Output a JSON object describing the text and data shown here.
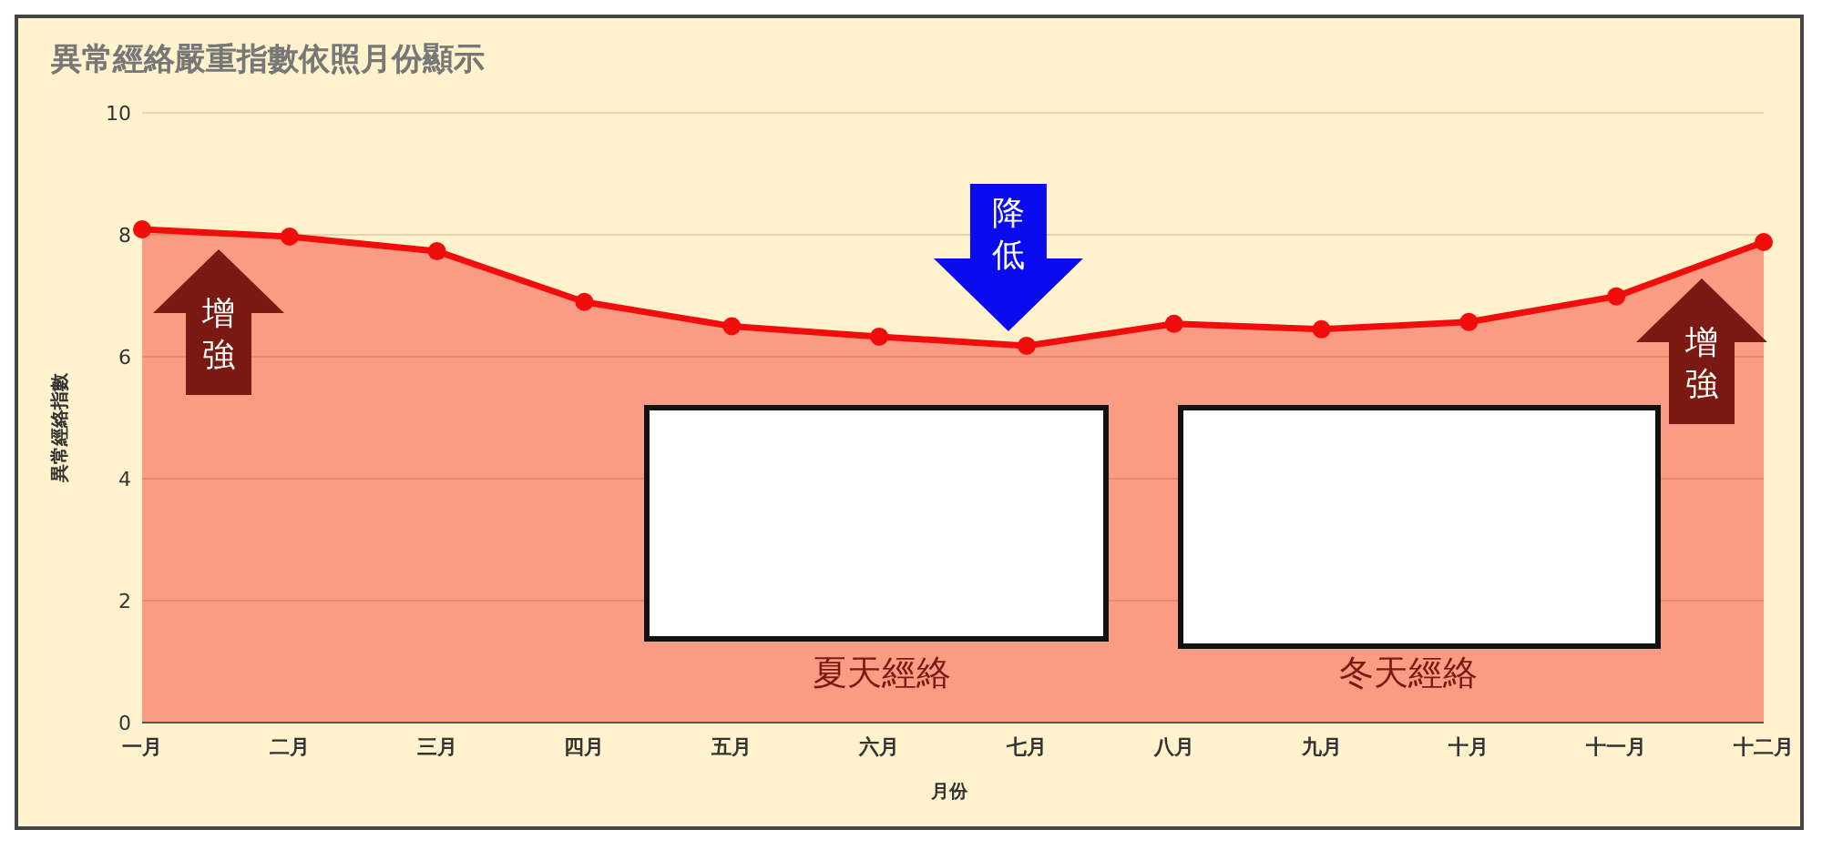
{
  "chart_data": {
    "type": "area",
    "title": "異常經絡嚴重指數依照月份顯示",
    "xlabel": "月份",
    "ylabel": "異常經絡指數",
    "categories": [
      "一月",
      "二月",
      "三月",
      "四月",
      "五月",
      "六月",
      "七月",
      "八月",
      "九月",
      "十月",
      "十一月",
      "十二月"
    ],
    "series": [
      {
        "color": "#f20d0d",
        "values": [
          8.09,
          7.97,
          7.73,
          6.9,
          6.5,
          6.33,
          6.18,
          6.54,
          6.45,
          6.57,
          6.99,
          7.88
        ]
      }
    ],
    "ylim": [
      0,
      10
    ],
    "yticks": [
      0,
      2,
      4,
      6,
      8,
      10
    ],
    "grid": "y",
    "marker": "circle",
    "line_style": "solid",
    "annotations": [
      "增強",
      {
        "text": "降低",
        "x": "七月",
        "y": 6.18
      },
      "增強",
      "夏天經絡",
      "冬天經絡"
    ]
  }
}
